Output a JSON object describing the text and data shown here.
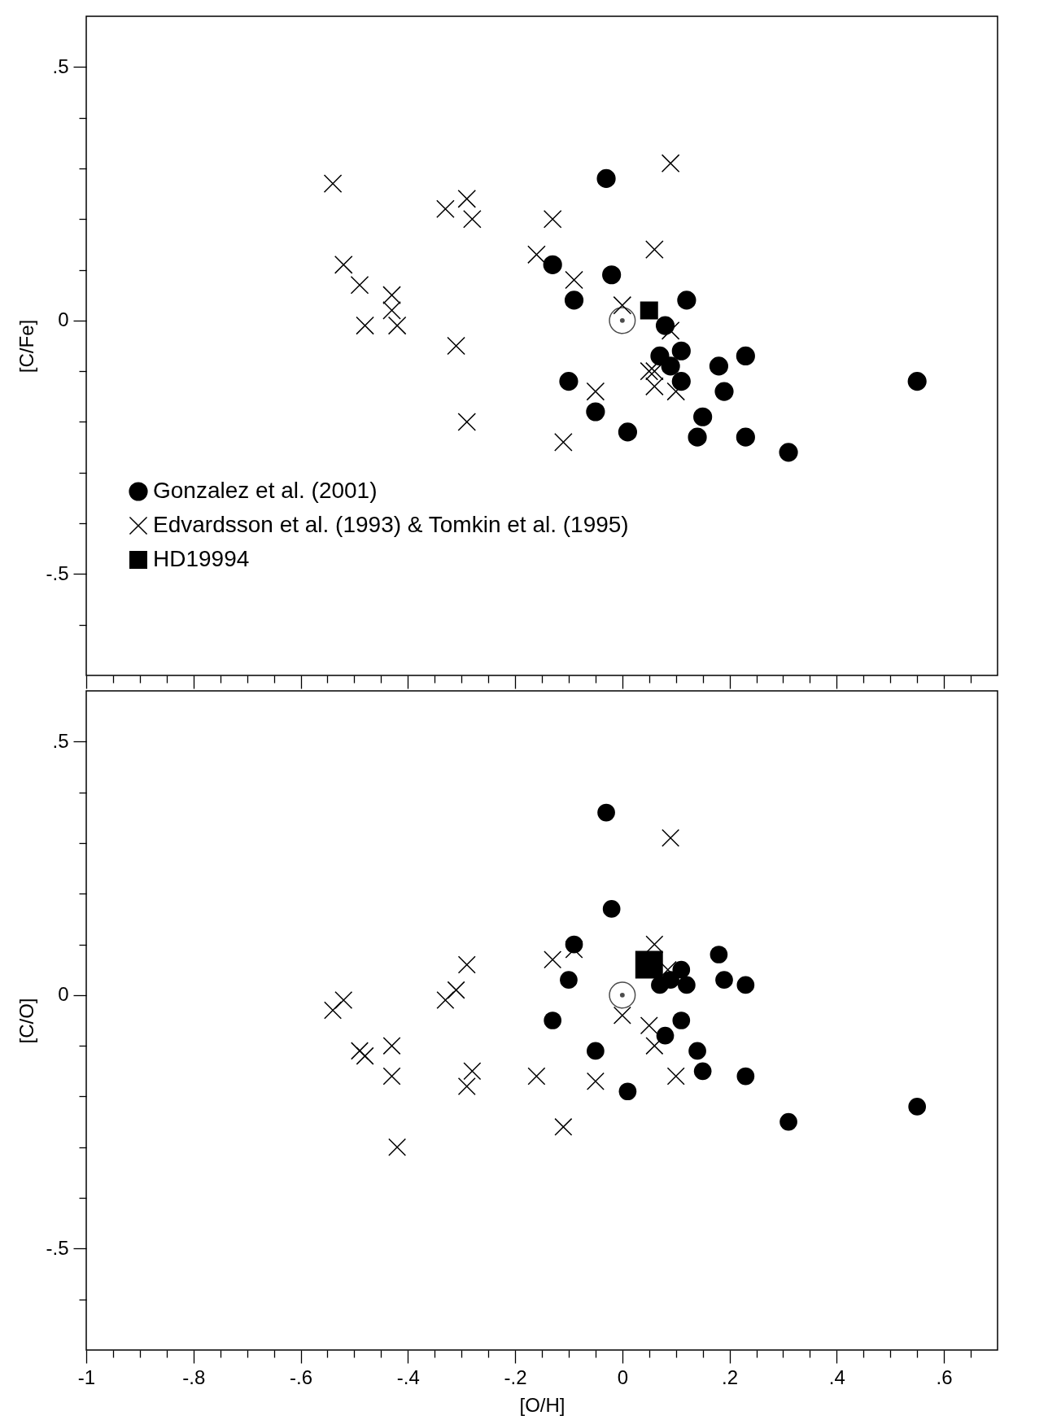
{
  "chart_data": [
    {
      "type": "scatter",
      "ylabel": "[C/Fe]",
      "xlim": [
        -1,
        0.7
      ],
      "ylim": [
        -0.7,
        0.6
      ],
      "tick_labels": "y",
      "legend": "bottom left",
      "xticks": [
        {
          "value": -1,
          "label": null
        },
        {
          "value": -0.95,
          "label": null
        },
        {
          "value": -0.9,
          "label": null
        },
        {
          "value": -0.85,
          "label": null
        },
        {
          "value": -0.8,
          "label": null
        },
        {
          "value": -0.75,
          "label": null
        },
        {
          "value": -0.7,
          "label": null
        },
        {
          "value": -0.65,
          "label": null
        },
        {
          "value": -0.6,
          "label": null
        },
        {
          "value": -0.55,
          "label": null
        },
        {
          "value": -0.5,
          "label": null
        },
        {
          "value": -0.45,
          "label": null
        },
        {
          "value": -0.4,
          "label": null
        },
        {
          "value": -0.35,
          "label": null
        },
        {
          "value": -0.3,
          "label": null
        },
        {
          "value": -0.25,
          "label": null
        },
        {
          "value": -0.2,
          "label": null
        },
        {
          "value": -0.15,
          "label": null
        },
        {
          "value": -0.1,
          "label": null
        },
        {
          "value": -0.05,
          "label": null
        },
        {
          "value": 0,
          "label": null
        },
        {
          "value": 0.05,
          "label": null
        },
        {
          "value": 0.1,
          "label": null
        },
        {
          "value": 0.15,
          "label": null
        },
        {
          "value": 0.2,
          "label": null
        },
        {
          "value": 0.25,
          "label": null
        },
        {
          "value": 0.3,
          "label": null
        },
        {
          "value": 0.35,
          "label": null
        },
        {
          "value": 0.4,
          "label": null
        },
        {
          "value": 0.45,
          "label": null
        },
        {
          "value": 0.5,
          "label": null
        },
        {
          "value": 0.55,
          "label": null
        },
        {
          "value": 0.6,
          "label": null
        },
        {
          "value": 0.65,
          "label": null
        }
      ],
      "yticks": [
        {
          "value": -0.6,
          "label": null
        },
        {
          "value": -0.5,
          "label": "-.5"
        },
        {
          "value": -0.4,
          "label": null
        },
        {
          "value": -0.3,
          "label": null
        },
        {
          "value": -0.2,
          "label": null
        },
        {
          "value": -0.1,
          "label": null
        },
        {
          "value": 0,
          "label": "0"
        },
        {
          "value": 0.1,
          "label": null
        },
        {
          "value": 0.2,
          "label": null
        },
        {
          "value": 0.3,
          "label": null
        },
        {
          "value": 0.4,
          "label": null
        },
        {
          "value": 0.5,
          "label": ".5"
        }
      ],
      "series": [
        {
          "name": "Gonzalez et al. (2001)",
          "color": "#000000",
          "marker": "circle",
          "x": [
            -0.03,
            -0.13,
            -0.02,
            -0.09,
            0.12,
            0.08,
            0.07,
            0.11,
            0.09,
            0.23,
            0.18,
            0.11,
            0.19,
            -0.1,
            0.15,
            -0.05,
            0.01,
            0.14,
            0.23,
            0.31,
            0.55
          ],
          "values": [
            0.28,
            0.11,
            0.09,
            0.04,
            0.04,
            -0.01,
            -0.07,
            -0.06,
            -0.09,
            -0.07,
            -0.09,
            -0.12,
            -0.14,
            -0.12,
            -0.19,
            -0.18,
            -0.22,
            -0.23,
            -0.23,
            -0.26,
            -0.12
          ]
        },
        {
          "name": "Edvardsson et al. (1993) & Tomkin et al. (1995)",
          "color": "#000000",
          "marker": "cross",
          "x": [
            -0.54,
            -0.52,
            -0.49,
            -0.48,
            -0.43,
            -0.43,
            -0.42,
            -0.33,
            -0.29,
            -0.28,
            -0.31,
            -0.29,
            -0.16,
            -0.13,
            -0.09,
            -0.11,
            -0.05,
            0,
            0.06,
            0.09,
            0.09,
            0.05,
            0.06,
            0.06,
            0.1
          ],
          "values": [
            0.27,
            0.11,
            0.07,
            -0.01,
            0.05,
            0.02,
            -0.01,
            0.22,
            0.24,
            0.2,
            -0.05,
            -0.2,
            0.13,
            0.2,
            0.08,
            -0.24,
            -0.14,
            0.03,
            0.14,
            0.31,
            -0.02,
            -0.1,
            -0.1,
            -0.13,
            -0.14
          ]
        },
        {
          "name": "HD19994",
          "color": "#000000",
          "marker": "square",
          "x": [
            0.05
          ],
          "values": [
            0.02
          ]
        },
        {
          "color": "#000000",
          "marker": "circle",
          "x": [
            0
          ],
          "values": [
            0
          ]
        }
      ]
    },
    {
      "type": "scatter",
      "ylabel": "[C/O]",
      "xlabel": "[O/H]",
      "xlim": [
        -1,
        0.7
      ],
      "ylim": [
        -0.7,
        0.6
      ],
      "xticks": [
        -1,
        {
          "value": -0.95,
          "label": null
        },
        {
          "value": -0.9,
          "label": null
        },
        {
          "value": -0.85,
          "label": null
        },
        {
          "value": -0.8,
          "label": "-.8"
        },
        {
          "value": -0.75,
          "label": null
        },
        {
          "value": -0.7,
          "label": null
        },
        {
          "value": -0.65,
          "label": null
        },
        {
          "value": -0.6,
          "label": "-.6"
        },
        {
          "value": -0.55,
          "label": null
        },
        {
          "value": -0.5,
          "label": null
        },
        {
          "value": -0.45,
          "label": null
        },
        {
          "value": -0.4,
          "label": "-.4"
        },
        {
          "value": -0.35,
          "label": null
        },
        {
          "value": -0.3,
          "label": null
        },
        {
          "value": -0.25,
          "label": null
        },
        {
          "value": -0.2,
          "label": "-.2"
        },
        {
          "value": -0.15,
          "label": null
        },
        {
          "value": -0.1,
          "label": null
        },
        {
          "value": -0.05,
          "label": null
        },
        {
          "value": 0,
          "label": "0"
        },
        {
          "value": 0.05,
          "label": null
        },
        {
          "value": 0.1,
          "label": null
        },
        {
          "value": 0.15,
          "label": null
        },
        {
          "value": 0.2,
          "label": ".2"
        },
        {
          "value": 0.25,
          "label": null
        },
        {
          "value": 0.3,
          "label": null
        },
        {
          "value": 0.35,
          "label": null
        },
        {
          "value": 0.4,
          "label": ".4"
        },
        {
          "value": 0.45,
          "label": null
        },
        {
          "value": 0.5,
          "label": null
        },
        {
          "value": 0.55,
          "label": null
        },
        {
          "value": 0.6,
          "label": ".6"
        },
        {
          "value": 0.65,
          "label": null
        }
      ],
      "yticks": [
        {
          "value": -0.6,
          "label": null
        },
        {
          "value": -0.5,
          "label": "-.5"
        },
        {
          "value": -0.4,
          "label": null
        },
        {
          "value": -0.3,
          "label": null
        },
        {
          "value": -0.2,
          "label": null
        },
        {
          "value": -0.1,
          "label": null
        },
        {
          "value": 0,
          "label": "0"
        },
        {
          "value": 0.1,
          "label": null
        },
        {
          "value": 0.2,
          "label": null
        },
        {
          "value": 0.3,
          "label": null
        },
        {
          "value": 0.4,
          "label": null
        },
        {
          "value": 0.5,
          "label": ".5"
        }
      ],
      "series": [
        {
          "color": "#000000",
          "marker": "circle",
          "x": [
            -0.03,
            -0.02,
            -0.09,
            0.18,
            -0.1,
            0.19,
            0.09,
            0.11,
            0.07,
            0.12,
            0.23,
            -0.13,
            0.11,
            0.08,
            -0.05,
            0.14,
            0.15,
            0.23,
            0.01,
            0.31,
            0.55
          ],
          "values": [
            0.36,
            0.17,
            0.1,
            0.08,
            0.03,
            0.03,
            0.03,
            0.05,
            0.02,
            0.02,
            0.02,
            -0.05,
            -0.05,
            -0.08,
            -0.11,
            -0.11,
            -0.15,
            -0.16,
            -0.19,
            -0.25,
            -0.22
          ]
        },
        {
          "color": "#000000",
          "marker": "cross",
          "x": [
            -0.54,
            -0.52,
            -0.49,
            -0.48,
            -0.43,
            -0.43,
            -0.42,
            -0.33,
            -0.31,
            -0.29,
            -0.28,
            -0.29,
            -0.16,
            -0.13,
            -0.09,
            -0.11,
            -0.05,
            0,
            0.06,
            0.09,
            0.085,
            0.05,
            0.06,
            0.1
          ],
          "values": [
            -0.03,
            -0.01,
            -0.11,
            -0.12,
            -0.1,
            -0.16,
            -0.3,
            -0.01,
            0.01,
            0.06,
            -0.15,
            -0.18,
            -0.16,
            0.07,
            0.09,
            -0.26,
            -0.17,
            -0.04,
            0.1,
            0.31,
            0.05,
            -0.06,
            -0.1,
            -0.16
          ]
        },
        {
          "color": "#000000",
          "marker": "square",
          "x": [
            0.05
          ],
          "values": [
            0.06
          ]
        },
        {
          "color": "#000000",
          "marker": "circle",
          "x": [
            0
          ],
          "values": [
            0
          ]
        }
      ]
    }
  ]
}
